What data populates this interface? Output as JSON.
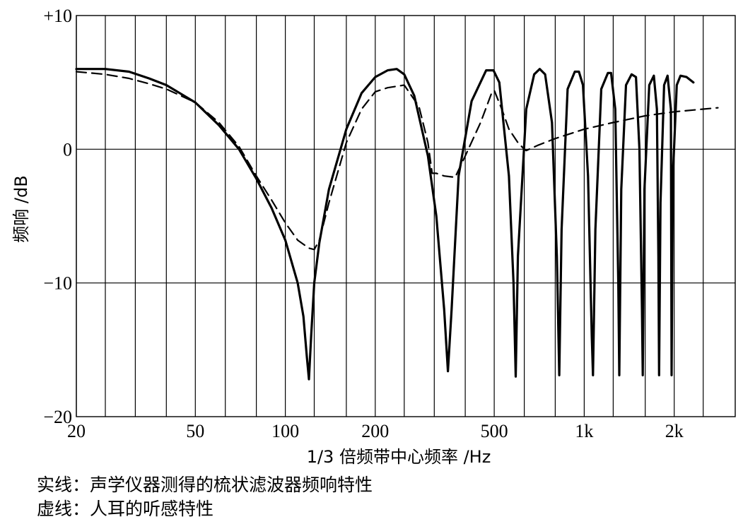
{
  "chart_data": {
    "type": "line",
    "xlabel": "1/3 倍频带中心频率 /Hz",
    "ylabel": "频响 /dB",
    "xscale": "log",
    "xlim": [
      20,
      3200
    ],
    "ylim": [
      -20,
      10
    ],
    "x_ticks": [
      {
        "value": 20,
        "label": "20"
      },
      {
        "value": 50,
        "label": "50"
      },
      {
        "value": 100,
        "label": "100"
      },
      {
        "value": 200,
        "label": "200"
      },
      {
        "value": 500,
        "label": "500"
      },
      {
        "value": 1000,
        "label": "1k"
      },
      {
        "value": 2000,
        "label": "2k"
      }
    ],
    "y_ticks": [
      {
        "value": 10,
        "label": "+10"
      },
      {
        "value": 0,
        "label": "0"
      },
      {
        "value": -10,
        "label": "−10"
      },
      {
        "value": -20,
        "label": "−20"
      }
    ],
    "x_gridlines": [
      20,
      25,
      31.5,
      40,
      50,
      63,
      80,
      100,
      125,
      160,
      200,
      250,
      315,
      400,
      500,
      630,
      800,
      1000,
      1250,
      1600,
      2000,
      2500
    ],
    "y_gridlines": [
      0,
      -10
    ],
    "grid": true,
    "series": [
      {
        "style": "solid",
        "color": "#000000",
        "x": [
          20,
          25,
          30,
          35,
          40,
          50,
          60,
          70,
          80,
          90,
          100,
          110,
          115,
          118,
          120,
          122,
          125,
          130,
          140,
          160,
          180,
          200,
          220,
          236,
          250,
          270,
          300,
          320,
          340,
          350,
          360,
          380,
          420,
          470,
          497,
          520,
          560,
          580,
          590,
          600,
          640,
          680,
          710,
          740,
          780,
          810,
          825,
          840,
          880,
          930,
          960,
          990,
          1030,
          1060,
          1070,
          1090,
          1140,
          1200,
          1230,
          1270,
          1300,
          1310,
          1330,
          1380,
          1440,
          1490,
          1530,
          1560,
          1570,
          1590,
          1650,
          1710,
          1750,
          1770,
          1780,
          1800,
          1850,
          1900,
          1950,
          1960,
          1980,
          2040,
          2100,
          2200,
          2320
        ],
        "y": [
          6.0,
          6.0,
          5.8,
          5.3,
          4.8,
          3.5,
          1.8,
          0.0,
          -2.2,
          -4.4,
          -6.8,
          -10.0,
          -12.5,
          -15.5,
          -17.2,
          -14.0,
          -10.0,
          -7.0,
          -3.0,
          1.5,
          4.2,
          5.4,
          5.9,
          6.0,
          5.6,
          4.0,
          -0.5,
          -5.0,
          -12.0,
          -16.6,
          -12.0,
          -2.0,
          3.6,
          5.9,
          5.9,
          5.0,
          -2.0,
          -10.0,
          -17.0,
          -8.0,
          3.0,
          5.6,
          6.0,
          5.6,
          2.0,
          -8.0,
          -16.9,
          -6.0,
          4.5,
          5.8,
          5.8,
          4.8,
          -2.0,
          -14.0,
          -16.9,
          -6.0,
          4.5,
          5.7,
          5.7,
          3.0,
          -10.0,
          -16.9,
          -3.0,
          4.8,
          5.6,
          5.4,
          0.0,
          -12.0,
          -16.9,
          -3.0,
          4.8,
          5.5,
          3.0,
          -8.0,
          -16.9,
          -4.0,
          4.8,
          5.5,
          3.0,
          -16.9,
          -2.0,
          4.8,
          5.5,
          5.4,
          5.0
        ]
      },
      {
        "style": "dashed",
        "color": "#000000",
        "x": [
          20,
          25,
          30,
          35,
          40,
          50,
          60,
          70,
          80,
          90,
          100,
          110,
          120,
          125,
          130,
          140,
          160,
          180,
          200,
          220,
          250,
          280,
          300,
          310,
          320,
          340,
          370,
          400,
          450,
          490,
          500,
          530,
          560,
          600,
          630,
          640,
          700,
          800,
          1000,
          1250,
          1600,
          2000,
          2500,
          2800
        ],
        "y": [
          5.8,
          5.6,
          5.3,
          4.9,
          4.5,
          3.5,
          2.0,
          0.2,
          -2.0,
          -3.8,
          -5.5,
          -6.8,
          -7.4,
          -7.5,
          -6.8,
          -4.0,
          0.5,
          3.0,
          4.3,
          4.6,
          4.8,
          3.2,
          0.5,
          -1.8,
          -1.8,
          -2.0,
          -2.1,
          -0.5,
          2.0,
          4.2,
          4.4,
          3.0,
          1.5,
          0.5,
          0.0,
          -0.1,
          0.3,
          0.8,
          1.5,
          2.0,
          2.5,
          2.8,
          3.0,
          3.1
        ]
      }
    ],
    "captions": [
      "实线：声学仪器测得的梳状滤波器频响特性",
      "虚线：人耳的听感特性"
    ]
  }
}
